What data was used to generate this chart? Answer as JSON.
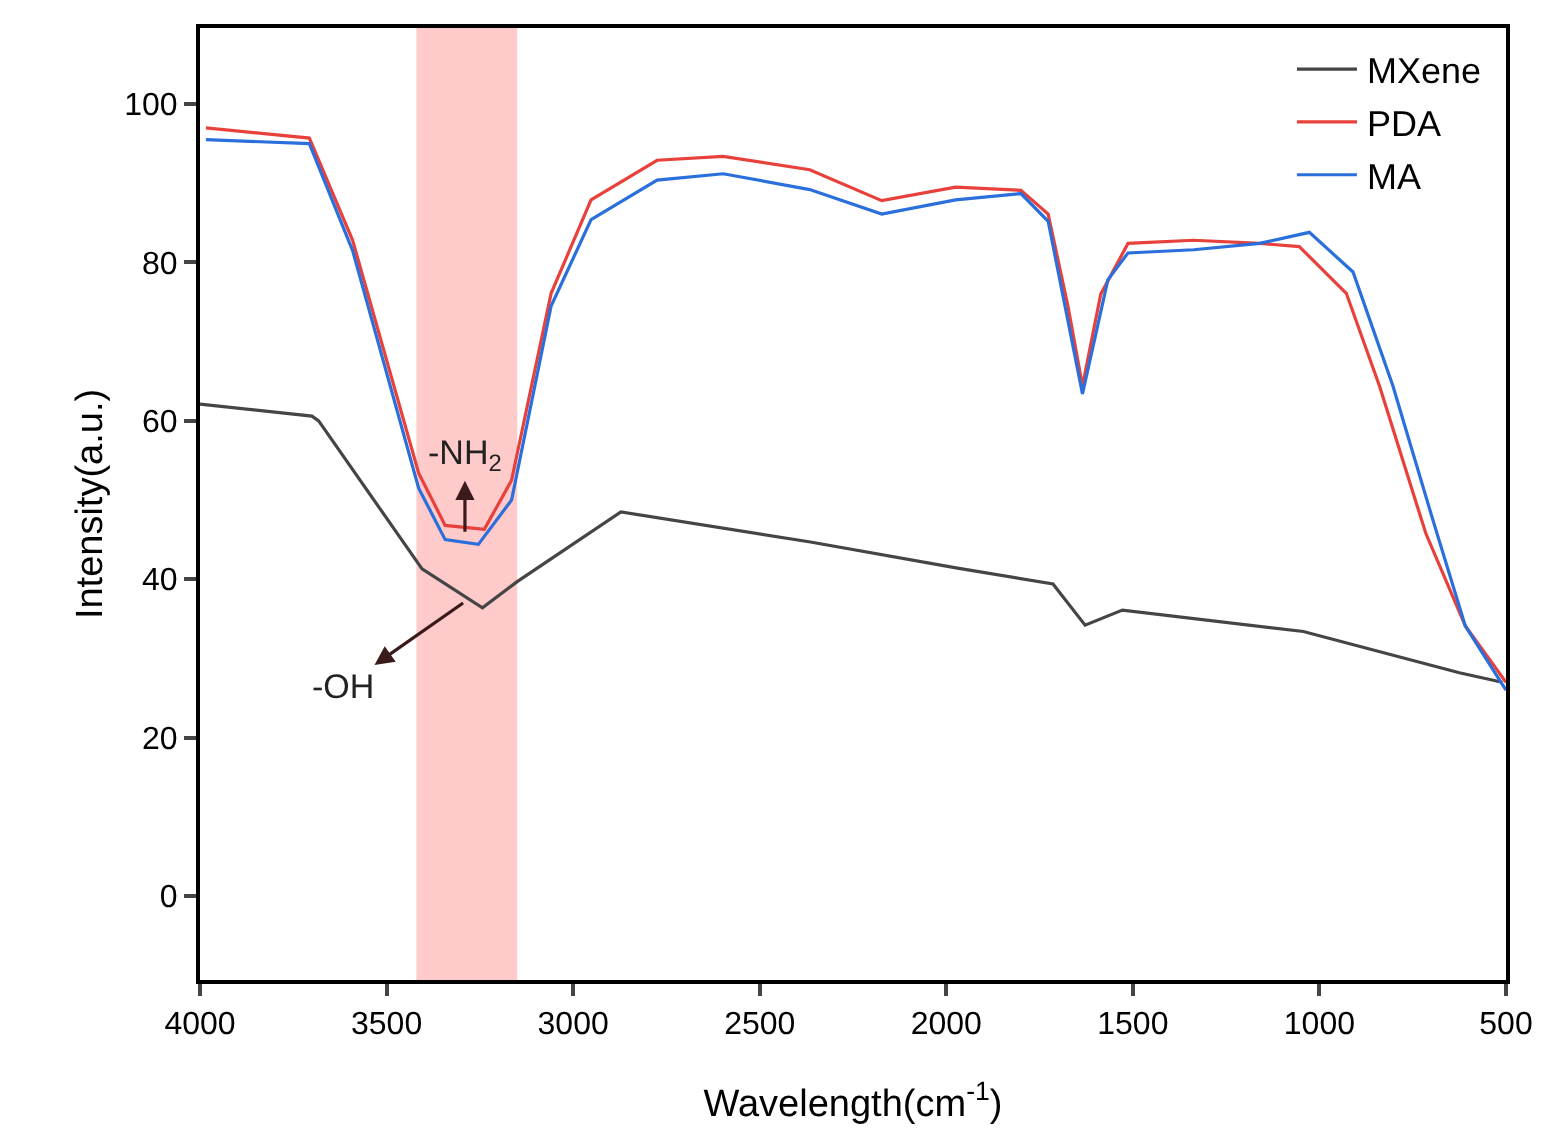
{
  "chart_data": {
    "type": "line",
    "xlabel": "Wavelength(cm$^{-1}$)",
    "ylabel": "Intensity(a.u.)",
    "xlim": [
      4000,
      500
    ],
    "xticks": [
      4000,
      3500,
      3000,
      2500,
      2000,
      1500,
      1000,
      500
    ],
    "ylim": [
      -10.6,
      109.6
    ],
    "yticks": [
      0,
      20,
      40,
      60,
      80,
      100
    ],
    "grid": false,
    "legend": "top right",
    "marker": "none",
    "line_style": "solid",
    "bands": [
      {
        "axis": "x",
        "from": 3150,
        "to": 3420,
        "color": "#ffcaca"
      }
    ],
    "annotations": [
      {
        "text": "-NH$_{2}$",
        "x": 3290,
        "y": 46
      },
      {
        "text": "-OH",
        "x": 3295,
        "y": 37
      }
    ],
    "series": [
      {
        "name": "MXene",
        "color": "#454545",
        "x": [
          4000,
          3700,
          3682,
          3405,
          3243,
          3150,
          2872,
          2364,
          1970,
          1714,
          1628,
          1528,
          1043,
          625,
          510
        ],
        "values": [
          62.1,
          60.6,
          60.0,
          41.3,
          36.4,
          39.7,
          48.5,
          44.7,
          41.4,
          39.4,
          34.2,
          36.1,
          33.4,
          28.2,
          27
        ]
      },
      {
        "name": "PDA",
        "color": "#e8413c",
        "x": [
          3984,
          3707,
          3591,
          3414,
          3343,
          3238,
          3165,
          3059,
          2952,
          2775,
          2598,
          2366,
          2173,
          1975,
          1800,
          1727,
          1674,
          1635,
          1586,
          1513,
          1337,
          1160,
          1054,
          928,
          839,
          715,
          609,
          500
        ],
        "values": [
          97.0,
          95.7,
          82.8,
          53.4,
          46.8,
          46.3,
          52.5,
          76.1,
          87.9,
          92.9,
          93.4,
          91.7,
          87.8,
          89.5,
          89.1,
          86.1,
          74.5,
          64.4,
          76.0,
          82.4,
          82.8,
          82.4,
          82.0,
          76.1,
          64.4,
          45.8,
          34.1,
          27
        ]
      },
      {
        "name": "MA",
        "color": "#2a6fdb",
        "x": [
          3984,
          3707,
          3591,
          3414,
          3343,
          3254,
          3165,
          3059,
          2952,
          2775,
          2598,
          2366,
          2173,
          1975,
          1800,
          1727,
          1635,
          1567,
          1513,
          1337,
          1160,
          1027,
          910,
          803,
          696,
          609,
          500
        ],
        "values": [
          95.5,
          95.0,
          81.5,
          51.5,
          45.0,
          44.4,
          50.0,
          74.5,
          85.4,
          90.4,
          91.2,
          89.2,
          86.1,
          87.9,
          88.7,
          85.2,
          63.4,
          77.8,
          81.2,
          81.6,
          82.4,
          83.8,
          78.8,
          64.4,
          47.5,
          34.1,
          26
        ]
      }
    ]
  }
}
